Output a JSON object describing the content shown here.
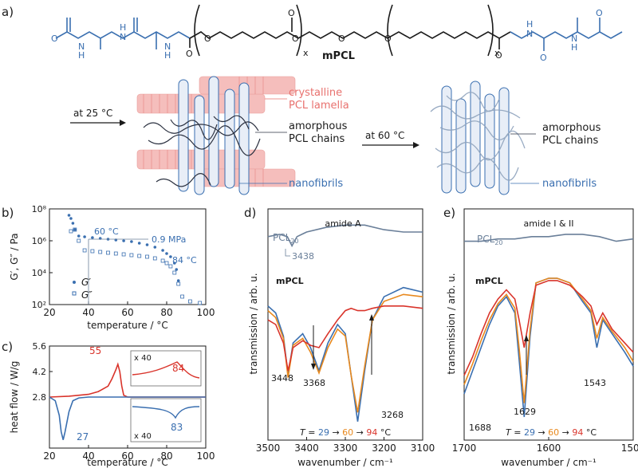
{
  "panels": {
    "a": "a)",
    "b": "b)",
    "c": "c)",
    "d": "d)",
    "e": "e)"
  },
  "molecule": {
    "name": "mPCL",
    "repeat_x_left": "x",
    "repeat_x_right": "x",
    "atom_O": "O",
    "atom_N": "N",
    "atom_H": "H"
  },
  "schematic": {
    "arrow1_label": "at 25 °C",
    "arrow2_label": "at 60 °C",
    "crystalline_line1": "crystalline",
    "crystalline_line2": "PCL lamella",
    "amorphous1_line1": "amorphous",
    "amorphous1_line2": "PCL chains",
    "nanofibrils1": "nanofibrils",
    "amorphous2_line1": "amorphous",
    "amorphous2_line2": "PCL chains",
    "nanofibrils2": "nanofibrils"
  },
  "colors": {
    "blue": "#3a6fb0",
    "red": "#d9342b",
    "orange": "#e8891e",
    "pink": "#f2a9a6",
    "gray": "#6a7f99"
  },
  "chart_data": [
    {
      "id": "b",
      "type": "scatter",
      "title": "",
      "xlabel": "temperature / °C",
      "ylabel": "G′, G″ / Pa",
      "xlim": [
        20,
        100
      ],
      "ylim_log10": [
        2,
        8
      ],
      "x_ticks": [
        "20",
        "40",
        "60",
        "80",
        "100"
      ],
      "y_ticks": [
        "10²",
        "10⁴",
        "10⁶",
        "10⁸"
      ],
      "legend": [
        "G′",
        "G″"
      ],
      "annotations": {
        "t60": "60 °C",
        "modulus": "0.9 MPa",
        "t84": "84 °C"
      },
      "series": [
        {
          "name": "G′",
          "marker": "filled",
          "x": [
            30,
            31,
            32,
            33,
            35,
            38,
            42,
            46,
            50,
            54,
            58,
            62,
            66,
            70,
            74,
            78,
            80,
            82,
            84,
            85,
            86
          ],
          "log10_y": [
            7.6,
            7.4,
            7.1,
            6.7,
            6.3,
            6.25,
            6.2,
            6.15,
            6.1,
            6.05,
            6.0,
            5.95,
            5.85,
            5.75,
            5.6,
            5.4,
            5.2,
            5.0,
            4.6,
            4.2,
            3.5
          ]
        },
        {
          "name": "G″",
          "marker": "open",
          "x": [
            31,
            33,
            35,
            38,
            42,
            46,
            50,
            54,
            58,
            62,
            66,
            70,
            74,
            78,
            80,
            82,
            84,
            86,
            88,
            92,
            97
          ],
          "log10_y": [
            6.6,
            6.7,
            6.0,
            5.4,
            5.35,
            5.3,
            5.25,
            5.2,
            5.15,
            5.1,
            5.05,
            5.0,
            4.9,
            4.75,
            4.6,
            4.4,
            4.0,
            3.3,
            2.5,
            2.2,
            2.1
          ]
        }
      ]
    },
    {
      "id": "c",
      "type": "line",
      "xlabel": "temperature / °C",
      "ylabel": "heat flow / W/g",
      "xlim": [
        20,
        100
      ],
      "ylim": [
        0,
        5.6
      ],
      "x_ticks": [
        "20",
        "40",
        "60",
        "80",
        "100"
      ],
      "y_ticks": [
        "2.8",
        "4.2",
        "5.6"
      ],
      "peaks": {
        "red_peak": "55",
        "red_inset_peak": "84",
        "blue_peak": "27",
        "blue_inset_peak": "83"
      },
      "inset_labels": {
        "top": "x 40",
        "bottom": "x 40"
      },
      "series": [
        {
          "name": "heating",
          "color": "#d9342b",
          "x": [
            20,
            30,
            40,
            45,
            50,
            52,
            54,
            55,
            56,
            57,
            58,
            60,
            70,
            100
          ],
          "y": [
            2.8,
            2.85,
            2.95,
            3.1,
            3.4,
            3.8,
            4.3,
            4.6,
            4.2,
            3.4,
            2.9,
            2.8,
            2.8,
            2.8
          ]
        },
        {
          "name": "cooling",
          "color": "#3a6fb0",
          "x": [
            20,
            23,
            25,
            26,
            27,
            28,
            30,
            32,
            35,
            40,
            100
          ],
          "y": [
            2.8,
            2.6,
            1.8,
            0.9,
            0.45,
            0.9,
            2.0,
            2.6,
            2.75,
            2.8,
            2.8
          ]
        }
      ]
    },
    {
      "id": "d",
      "type": "line",
      "title": "amide A",
      "xlabel": "wavenumber / cm⁻¹",
      "ylabel": "transmission / arb. u.",
      "xlim": [
        3500,
        3100
      ],
      "x_ticks": [
        "3500",
        "3400",
        "3300",
        "3200",
        "3100"
      ],
      "reference_label": "PCL",
      "reference_sub": "20",
      "sample_label": "mPCL",
      "band_labels": [
        "3438",
        "3448",
        "3368",
        "3268"
      ],
      "temperature_label": {
        "prefix": "T",
        "eq": " = ",
        "t1": "29",
        "arr": " → ",
        "t2": "60",
        "t3": "94",
        "unit": " °C"
      },
      "series": [
        {
          "name": "PCL20",
          "color": "#6a7f99",
          "x": [
            3500,
            3470,
            3450,
            3438,
            3425,
            3400,
            3350,
            3300,
            3250,
            3200,
            3150,
            3100
          ],
          "y": [
            0.88,
            0.89,
            0.88,
            0.84,
            0.88,
            0.9,
            0.92,
            0.93,
            0.93,
            0.91,
            0.9,
            0.9
          ]
        },
        {
          "name": "29 °C",
          "color": "#3a6fb0",
          "x": [
            3500,
            3480,
            3460,
            3448,
            3435,
            3410,
            3390,
            3368,
            3345,
            3320,
            3300,
            3285,
            3268,
            3250,
            3230,
            3200,
            3150,
            3100
          ],
          "y": [
            0.58,
            0.55,
            0.45,
            0.28,
            0.42,
            0.46,
            0.4,
            0.3,
            0.42,
            0.5,
            0.46,
            0.28,
            0.08,
            0.3,
            0.52,
            0.62,
            0.66,
            0.64
          ]
        },
        {
          "name": "60 °C",
          "color": "#e8891e",
          "x": [
            3500,
            3480,
            3460,
            3448,
            3435,
            3410,
            3390,
            3368,
            3345,
            3320,
            3300,
            3285,
            3268,
            3250,
            3230,
            3200,
            3150,
            3100
          ],
          "y": [
            0.56,
            0.53,
            0.44,
            0.27,
            0.41,
            0.44,
            0.38,
            0.29,
            0.4,
            0.48,
            0.45,
            0.28,
            0.12,
            0.32,
            0.52,
            0.6,
            0.63,
            0.62
          ]
        },
        {
          "name": "94 °C",
          "color": "#d9342b",
          "x": [
            3500,
            3480,
            3460,
            3448,
            3435,
            3410,
            3390,
            3368,
            3345,
            3320,
            3300,
            3285,
            3268,
            3250,
            3230,
            3200,
            3150,
            3100
          ],
          "y": [
            0.52,
            0.5,
            0.42,
            0.3,
            0.4,
            0.43,
            0.41,
            0.4,
            0.46,
            0.52,
            0.56,
            0.57,
            0.56,
            0.56,
            0.57,
            0.58,
            0.58,
            0.57
          ]
        }
      ]
    },
    {
      "id": "e",
      "type": "line",
      "title": "amide I & II",
      "xlabel": "wavenumber / cm⁻¹",
      "ylabel": "transmission / arb. u.",
      "xlim": [
        1700,
        1500
      ],
      "x_ticks": [
        "1700",
        "1600",
        "1500"
      ],
      "reference_label": "PCL",
      "reference_sub": "20",
      "sample_label": "mPCL",
      "band_labels": [
        "1688",
        "1629",
        "1543"
      ],
      "temperature_label": {
        "prefix": "T",
        "eq": " = ",
        "t1": "29",
        "arr": " → ",
        "t2": "60",
        "t3": "94",
        "unit": " °C"
      },
      "series": [
        {
          "name": "PCL20",
          "color": "#6a7f99",
          "x": [
            1700,
            1680,
            1660,
            1640,
            1620,
            1600,
            1580,
            1560,
            1540,
            1520,
            1500
          ],
          "y": [
            0.86,
            0.86,
            0.87,
            0.87,
            0.88,
            0.88,
            0.89,
            0.89,
            0.88,
            0.86,
            0.87
          ]
        },
        {
          "name": "29 °C",
          "color": "#3a6fb0",
          "x": [
            1700,
            1690,
            1680,
            1670,
            1660,
            1650,
            1640,
            1635,
            1629,
            1622,
            1615,
            1600,
            1590,
            1575,
            1560,
            1550,
            1543,
            1536,
            1525,
            1510,
            1500
          ],
          "y": [
            0.2,
            0.3,
            0.4,
            0.5,
            0.58,
            0.62,
            0.55,
            0.35,
            0.1,
            0.45,
            0.68,
            0.7,
            0.7,
            0.68,
            0.6,
            0.55,
            0.4,
            0.52,
            0.46,
            0.38,
            0.32
          ]
        },
        {
          "name": "60 °C",
          "color": "#e8891e",
          "x": [
            1700,
            1690,
            1680,
            1670,
            1660,
            1650,
            1640,
            1635,
            1629,
            1622,
            1615,
            1600,
            1590,
            1575,
            1560,
            1550,
            1543,
            1536,
            1525,
            1510,
            1500
          ],
          "y": [
            0.24,
            0.33,
            0.43,
            0.52,
            0.59,
            0.63,
            0.57,
            0.4,
            0.16,
            0.48,
            0.68,
            0.7,
            0.7,
            0.68,
            0.61,
            0.56,
            0.44,
            0.53,
            0.47,
            0.4,
            0.34
          ]
        },
        {
          "name": "94 °C",
          "color": "#d9342b",
          "x": [
            1700,
            1690,
            1680,
            1670,
            1660,
            1650,
            1640,
            1635,
            1629,
            1622,
            1615,
            1600,
            1590,
            1575,
            1560,
            1550,
            1543,
            1536,
            1525,
            1510,
            1500
          ],
          "y": [
            0.28,
            0.36,
            0.46,
            0.55,
            0.61,
            0.65,
            0.61,
            0.52,
            0.4,
            0.55,
            0.67,
            0.69,
            0.69,
            0.67,
            0.62,
            0.58,
            0.5,
            0.55,
            0.48,
            0.42,
            0.38
          ]
        }
      ]
    }
  ]
}
